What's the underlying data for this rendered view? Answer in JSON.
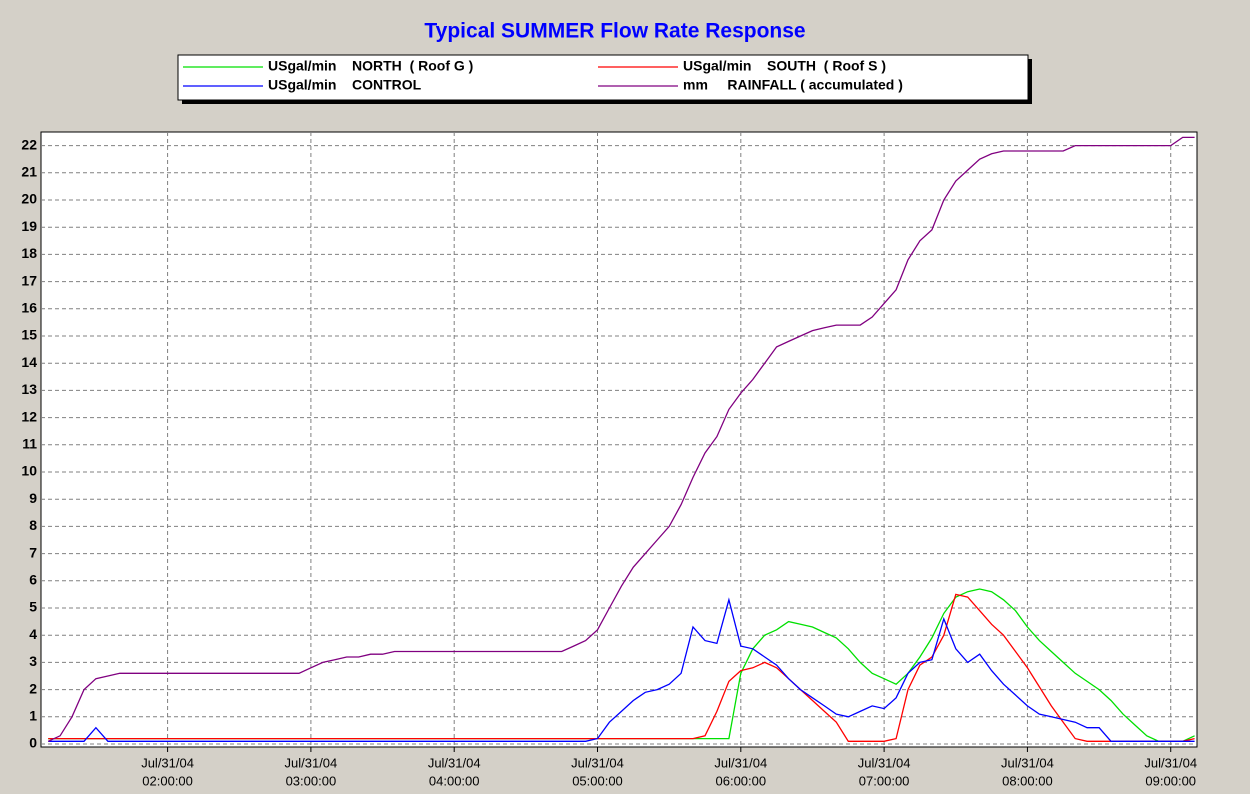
{
  "chart_data": {
    "type": "line",
    "title": "Typical SUMMER Flow Rate Response",
    "x": [
      "2004-07-31 01:10",
      "2004-07-31 01:15",
      "2004-07-31 01:20",
      "2004-07-31 01:25",
      "2004-07-31 01:30",
      "2004-07-31 01:35",
      "2004-07-31 01:40",
      "2004-07-31 01:45",
      "2004-07-31 01:50",
      "2004-07-31 01:55",
      "2004-07-31 02:00",
      "2004-07-31 02:05",
      "2004-07-31 02:10",
      "2004-07-31 02:15",
      "2004-07-31 02:20",
      "2004-07-31 02:25",
      "2004-07-31 02:30",
      "2004-07-31 02:35",
      "2004-07-31 02:40",
      "2004-07-31 02:45",
      "2004-07-31 02:50",
      "2004-07-31 02:55",
      "2004-07-31 03:00",
      "2004-07-31 03:05",
      "2004-07-31 03:10",
      "2004-07-31 03:15",
      "2004-07-31 03:20",
      "2004-07-31 03:25",
      "2004-07-31 03:30",
      "2004-07-31 03:35",
      "2004-07-31 03:40",
      "2004-07-31 03:45",
      "2004-07-31 03:50",
      "2004-07-31 03:55",
      "2004-07-31 04:00",
      "2004-07-31 04:05",
      "2004-07-31 04:10",
      "2004-07-31 04:15",
      "2004-07-31 04:20",
      "2004-07-31 04:25",
      "2004-07-31 04:30",
      "2004-07-31 04:35",
      "2004-07-31 04:40",
      "2004-07-31 04:45",
      "2004-07-31 04:50",
      "2004-07-31 04:55",
      "2004-07-31 05:00",
      "2004-07-31 05:05",
      "2004-07-31 05:10",
      "2004-07-31 05:15",
      "2004-07-31 05:20",
      "2004-07-31 05:25",
      "2004-07-31 05:30",
      "2004-07-31 05:35",
      "2004-07-31 05:40",
      "2004-07-31 05:45",
      "2004-07-31 05:50",
      "2004-07-31 05:55",
      "2004-07-31 06:00",
      "2004-07-31 06:05",
      "2004-07-31 06:10",
      "2004-07-31 06:15",
      "2004-07-31 06:20",
      "2004-07-31 06:25",
      "2004-07-31 06:30",
      "2004-07-31 06:35",
      "2004-07-31 06:40",
      "2004-07-31 06:45",
      "2004-07-31 06:50",
      "2004-07-31 06:55",
      "2004-07-31 07:00",
      "2004-07-31 07:05",
      "2004-07-31 07:10",
      "2004-07-31 07:15",
      "2004-07-31 07:20",
      "2004-07-31 07:25",
      "2004-07-31 07:30",
      "2004-07-31 07:35",
      "2004-07-31 07:40",
      "2004-07-31 07:45",
      "2004-07-31 07:50",
      "2004-07-31 07:55",
      "2004-07-31 08:00",
      "2004-07-31 08:05",
      "2004-07-31 08:10",
      "2004-07-31 08:15",
      "2004-07-31 08:20",
      "2004-07-31 08:25",
      "2004-07-31 08:30",
      "2004-07-31 08:35",
      "2004-07-31 08:40",
      "2004-07-31 08:45",
      "2004-07-31 08:50",
      "2004-07-31 08:55",
      "2004-07-31 09:00",
      "2004-07-31 09:05",
      "2004-07-31 09:10"
    ],
    "series": [
      {
        "name": "USgal/min    NORTH  ( Roof G )",
        "color": "#00e000",
        "values": [
          0.2,
          0.2,
          0.2,
          0.2,
          0.2,
          0.2,
          0.2,
          0.2,
          0.2,
          0.2,
          0.2,
          0.2,
          0.2,
          0.2,
          0.2,
          0.2,
          0.2,
          0.2,
          0.2,
          0.2,
          0.2,
          0.2,
          0.2,
          0.2,
          0.2,
          0.2,
          0.2,
          0.2,
          0.2,
          0.2,
          0.2,
          0.2,
          0.2,
          0.2,
          0.2,
          0.2,
          0.2,
          0.2,
          0.2,
          0.2,
          0.2,
          0.2,
          0.2,
          0.2,
          0.2,
          0.2,
          0.2,
          0.2,
          0.2,
          0.2,
          0.2,
          0.2,
          0.2,
          0.2,
          0.2,
          0.2,
          0.2,
          0.2,
          2.6,
          3.5,
          4.0,
          4.2,
          4.5,
          4.4,
          4.3,
          4.1,
          3.9,
          3.5,
          3.0,
          2.6,
          2.4,
          2.2,
          2.6,
          3.2,
          3.9,
          4.8,
          5.4,
          5.6,
          5.7,
          5.6,
          5.3,
          4.9,
          4.3,
          3.8,
          3.4,
          3.0,
          2.6,
          2.3,
          2.0,
          1.6,
          1.1,
          0.7,
          0.3,
          0.1,
          0.1,
          0.1,
          0.3
        ]
      },
      {
        "name": "USgal/min    SOUTH  ( Roof S )",
        "color": "#ff0000",
        "values": [
          0.2,
          0.2,
          0.2,
          0.2,
          0.2,
          0.2,
          0.2,
          0.2,
          0.2,
          0.2,
          0.2,
          0.2,
          0.2,
          0.2,
          0.2,
          0.2,
          0.2,
          0.2,
          0.2,
          0.2,
          0.2,
          0.2,
          0.2,
          0.2,
          0.2,
          0.2,
          0.2,
          0.2,
          0.2,
          0.2,
          0.2,
          0.2,
          0.2,
          0.2,
          0.2,
          0.2,
          0.2,
          0.2,
          0.2,
          0.2,
          0.2,
          0.2,
          0.2,
          0.2,
          0.2,
          0.2,
          0.2,
          0.2,
          0.2,
          0.2,
          0.2,
          0.2,
          0.2,
          0.2,
          0.2,
          0.3,
          1.2,
          2.3,
          2.7,
          2.8,
          3.0,
          2.8,
          2.4,
          2.0,
          1.6,
          1.2,
          0.8,
          0.1,
          0.1,
          0.1,
          0.1,
          0.2,
          2.0,
          2.9,
          3.2,
          4.0,
          5.5,
          5.4,
          4.9,
          4.4,
          4.0,
          3.4,
          2.8,
          2.1,
          1.4,
          0.8,
          0.2,
          0.1,
          0.1,
          0.1,
          0.1,
          0.1,
          0.1,
          0.1,
          0.1,
          0.1,
          0.2
        ]
      },
      {
        "name": "USgal/min    CONTROL",
        "color": "#0000ff",
        "values": [
          0.1,
          0.1,
          0.1,
          0.1,
          0.6,
          0.1,
          0.1,
          0.1,
          0.1,
          0.1,
          0.1,
          0.1,
          0.1,
          0.1,
          0.1,
          0.1,
          0.1,
          0.1,
          0.1,
          0.1,
          0.1,
          0.1,
          0.1,
          0.1,
          0.1,
          0.1,
          0.1,
          0.1,
          0.1,
          0.1,
          0.1,
          0.1,
          0.1,
          0.1,
          0.1,
          0.1,
          0.1,
          0.1,
          0.1,
          0.1,
          0.1,
          0.1,
          0.1,
          0.1,
          0.1,
          0.1,
          0.2,
          0.8,
          1.2,
          1.6,
          1.9,
          2.0,
          2.2,
          2.6,
          4.3,
          3.8,
          3.7,
          5.3,
          3.6,
          3.5,
          3.2,
          2.9,
          2.4,
          2.0,
          1.7,
          1.4,
          1.1,
          1.0,
          1.2,
          1.4,
          1.3,
          1.7,
          2.6,
          3.0,
          3.1,
          4.6,
          3.5,
          3.0,
          3.3,
          2.7,
          2.2,
          1.8,
          1.4,
          1.1,
          1.0,
          0.9,
          0.8,
          0.6,
          0.6,
          0.1,
          0.1,
          0.1,
          0.1,
          0.1,
          0.1,
          0.1,
          0.1
        ]
      },
      {
        "name": "mm     RAINFALL ( accumulated )",
        "color": "#800080",
        "values": [
          0.1,
          0.3,
          1.0,
          2.0,
          2.4,
          2.5,
          2.6,
          2.6,
          2.6,
          2.6,
          2.6,
          2.6,
          2.6,
          2.6,
          2.6,
          2.6,
          2.6,
          2.6,
          2.6,
          2.6,
          2.6,
          2.6,
          2.8,
          3.0,
          3.1,
          3.2,
          3.2,
          3.3,
          3.3,
          3.4,
          3.4,
          3.4,
          3.4,
          3.4,
          3.4,
          3.4,
          3.4,
          3.4,
          3.4,
          3.4,
          3.4,
          3.4,
          3.4,
          3.4,
          3.6,
          3.8,
          4.2,
          5.0,
          5.8,
          6.5,
          7.0,
          7.5,
          8.0,
          8.8,
          9.8,
          10.7,
          11.3,
          12.3,
          12.9,
          13.4,
          14.0,
          14.6,
          14.8,
          15.0,
          15.2,
          15.3,
          15.4,
          15.4,
          15.4,
          15.7,
          16.2,
          16.7,
          17.8,
          18.5,
          18.9,
          20.0,
          20.7,
          21.1,
          21.5,
          21.7,
          21.8,
          21.8,
          21.8,
          21.8,
          21.8,
          21.8,
          22.0,
          22.0,
          22.0,
          22.0,
          22.0,
          22.0,
          22.0,
          22.0,
          22.0,
          22.3,
          22.3
        ]
      }
    ],
    "xlim": [
      "2004-07-31 01:07",
      "2004-07-31 09:11"
    ],
    "xticks": [
      {
        "value": "2004-07-31 02:00",
        "label": [
          "Jul/31/04",
          "02:00:00"
        ]
      },
      {
        "value": "2004-07-31 03:00",
        "label": [
          "Jul/31/04",
          "03:00:00"
        ]
      },
      {
        "value": "2004-07-31 04:00",
        "label": [
          "Jul/31/04",
          "04:00:00"
        ]
      },
      {
        "value": "2004-07-31 05:00",
        "label": [
          "Jul/31/04",
          "05:00:00"
        ]
      },
      {
        "value": "2004-07-31 06:00",
        "label": [
          "Jul/31/04",
          "06:00:00"
        ]
      },
      {
        "value": "2004-07-31 07:00",
        "label": [
          "Jul/31/04",
          "07:00:00"
        ]
      },
      {
        "value": "2004-07-31 08:00",
        "label": [
          "Jul/31/04",
          "08:00:00"
        ]
      },
      {
        "value": "2004-07-31 09:00",
        "label": [
          "Jul/31/04",
          "09:00:00"
        ]
      }
    ],
    "ylim": [
      0,
      22.5
    ],
    "yticks": [
      0,
      1,
      2,
      3,
      4,
      5,
      6,
      7,
      8,
      9,
      10,
      11,
      12,
      13,
      14,
      15,
      16,
      17,
      18,
      19,
      20,
      21,
      22
    ],
    "grid": true
  }
}
